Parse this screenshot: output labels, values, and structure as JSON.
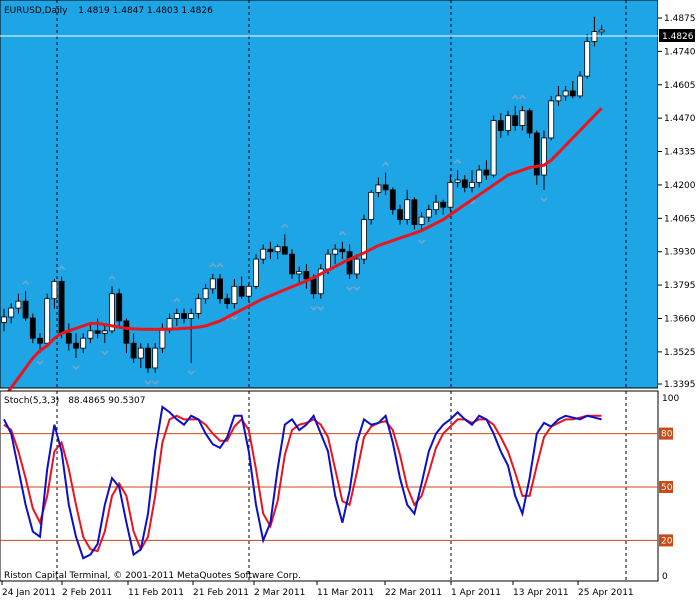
{
  "main_header": {
    "symbol": "EURUSD,Daily",
    "ohlc": "1.4819 1.4847 1.4803 1.4826"
  },
  "current_price_label": "1.4826",
  "stoch_header": {
    "name": "Stoch(5,3,3)",
    "values": "88.4865 90.5307"
  },
  "copyright": "Riston Capital Terminal, © 2001-2011 MetaQuotes Software Corp.",
  "colors": {
    "main_bg": "#1ea5e6",
    "stoch_bg": "#ffffff",
    "bull_candle": "#ffffff",
    "bear_candle": "#000000",
    "moving_average": "#e8141e",
    "stoch_main": "#0b10c8",
    "stoch_signal": "#e8141e",
    "stoch_levels": "#c84a14",
    "fractal_arrow": "#7ba6c8"
  },
  "chart_data": [
    {
      "type": "candlestick",
      "name": "EURUSD,Daily",
      "y_ticks": [
        "1.4875",
        "1.4740",
        "1.4605",
        "1.4470",
        "1.4335",
        "1.4200",
        "1.4065",
        "1.3930",
        "1.3795",
        "1.3660",
        "1.3525",
        "1.3395"
      ],
      "ylim": [
        1.3395,
        1.4875
      ],
      "x_ticks": [
        "24 Jan 2011",
        "2 Feb 2011",
        "11 Feb 2011",
        "21 Feb 2011",
        "2 Mar 2011",
        "11 Mar 2011",
        "22 Mar 2011",
        "1 Apr 2011",
        "13 Apr 2011",
        "25 Apr 2011"
      ],
      "candles": [
        [
          1.3644,
          1.37,
          1.3608,
          1.3666
        ],
        [
          1.3666,
          1.3722,
          1.364,
          1.3702
        ],
        [
          1.3702,
          1.376,
          1.368,
          1.373
        ],
        [
          1.373,
          1.377,
          1.365,
          1.3662
        ],
        [
          1.3662,
          1.368,
          1.356,
          1.358
        ],
        [
          1.358,
          1.36,
          1.352,
          1.356
        ],
        [
          1.356,
          1.376,
          1.356,
          1.374
        ],
        [
          1.374,
          1.382,
          1.37,
          1.381
        ],
        [
          1.381,
          1.383,
          1.358,
          1.36
        ],
        [
          1.36,
          1.364,
          1.353,
          1.356
        ],
        [
          1.356,
          1.36,
          1.35,
          1.354
        ],
        [
          1.354,
          1.36,
          1.352,
          1.358
        ],
        [
          1.358,
          1.364,
          1.356,
          1.361
        ],
        [
          1.361,
          1.366,
          1.358,
          1.36
        ],
        [
          1.36,
          1.364,
          1.356,
          1.361
        ],
        [
          1.361,
          1.379,
          1.36,
          1.376
        ],
        [
          1.376,
          1.378,
          1.362,
          1.365
        ],
        [
          1.365,
          1.366,
          1.352,
          1.356
        ],
        [
          1.356,
          1.36,
          1.348,
          1.35
        ],
        [
          1.35,
          1.356,
          1.346,
          1.354
        ],
        [
          1.354,
          1.356,
          1.344,
          1.346
        ],
        [
          1.346,
          1.356,
          1.344,
          1.354
        ],
        [
          1.354,
          1.364,
          1.352,
          1.362
        ],
        [
          1.362,
          1.368,
          1.36,
          1.366
        ],
        [
          1.366,
          1.37,
          1.363,
          1.368
        ],
        [
          1.368,
          1.37,
          1.364,
          1.366
        ],
        [
          1.366,
          1.37,
          1.348,
          1.368
        ],
        [
          1.368,
          1.376,
          1.366,
          1.374
        ],
        [
          1.374,
          1.38,
          1.372,
          1.378
        ],
        [
          1.378,
          1.384,
          1.376,
          1.382
        ],
        [
          1.382,
          1.384,
          1.372,
          1.374
        ],
        [
          1.374,
          1.376,
          1.37,
          1.372
        ],
        [
          1.372,
          1.382,
          1.37,
          1.379
        ],
        [
          1.379,
          1.383,
          1.374,
          1.375
        ],
        [
          1.375,
          1.38,
          1.373,
          1.379
        ],
        [
          1.379,
          1.392,
          1.378,
          1.39
        ],
        [
          1.39,
          1.396,
          1.388,
          1.394
        ],
        [
          1.394,
          1.397,
          1.39,
          1.393
        ],
        [
          1.393,
          1.396,
          1.39,
          1.395
        ],
        [
          1.395,
          1.4,
          1.392,
          1.392
        ],
        [
          1.392,
          1.394,
          1.382,
          1.384
        ],
        [
          1.384,
          1.387,
          1.38,
          1.385
        ],
        [
          1.385,
          1.388,
          1.378,
          1.382
        ],
        [
          1.382,
          1.384,
          1.374,
          1.376
        ],
        [
          1.376,
          1.388,
          1.374,
          1.386
        ],
        [
          1.386,
          1.394,
          1.384,
          1.392
        ],
        [
          1.392,
          1.396,
          1.388,
          1.394
        ],
        [
          1.394,
          1.397,
          1.39,
          1.393
        ],
        [
          1.393,
          1.396,
          1.382,
          1.384
        ],
        [
          1.384,
          1.392,
          1.382,
          1.39
        ],
        [
          1.39,
          1.408,
          1.388,
          1.406
        ],
        [
          1.406,
          1.418,
          1.404,
          1.417
        ],
        [
          1.417,
          1.423,
          1.415,
          1.42
        ],
        [
          1.42,
          1.425,
          1.416,
          1.418
        ],
        [
          1.418,
          1.419,
          1.408,
          1.41
        ],
        [
          1.41,
          1.412,
          1.404,
          1.406
        ],
        [
          1.406,
          1.418,
          1.404,
          1.414
        ],
        [
          1.414,
          1.415,
          1.402,
          1.404
        ],
        [
          1.404,
          1.409,
          1.401,
          1.407
        ],
        [
          1.407,
          1.412,
          1.405,
          1.41
        ],
        [
          1.41,
          1.416,
          1.408,
          1.413
        ],
        [
          1.413,
          1.414,
          1.408,
          1.411
        ],
        [
          1.411,
          1.424,
          1.409,
          1.421
        ],
        [
          1.421,
          1.426,
          1.419,
          1.422
        ],
        [
          1.422,
          1.424,
          1.417,
          1.419
        ],
        [
          1.419,
          1.426,
          1.417,
          1.421
        ],
        [
          1.421,
          1.428,
          1.419,
          1.426
        ],
        [
          1.426,
          1.43,
          1.422,
          1.424
        ],
        [
          1.424,
          1.448,
          1.423,
          1.446
        ],
        [
          1.446,
          1.449,
          1.439,
          1.442
        ],
        [
          1.442,
          1.45,
          1.44,
          1.448
        ],
        [
          1.448,
          1.452,
          1.442,
          1.444
        ],
        [
          1.444,
          1.452,
          1.442,
          1.45
        ],
        [
          1.45,
          1.451,
          1.439,
          1.441
        ],
        [
          1.441,
          1.442,
          1.42,
          1.424
        ],
        [
          1.424,
          1.442,
          1.418,
          1.439
        ],
        [
          1.439,
          1.456,
          1.438,
          1.454
        ],
        [
          1.454,
          1.46,
          1.452,
          1.456
        ],
        [
          1.456,
          1.46,
          1.454,
          1.458
        ],
        [
          1.458,
          1.462,
          1.455,
          1.456
        ],
        [
          1.456,
          1.466,
          1.455,
          1.464
        ],
        [
          1.464,
          1.481,
          1.463,
          1.478
        ],
        [
          1.478,
          1.488,
          1.476,
          1.482
        ],
        [
          1.4819,
          1.4847,
          1.4803,
          1.4826
        ]
      ],
      "moving_average": [
        1.334,
        1.338,
        1.342,
        1.346,
        1.35,
        1.353,
        1.355,
        1.358,
        1.36,
        1.361,
        1.362,
        1.363,
        1.364,
        1.364,
        1.3635,
        1.363,
        1.3625,
        1.362,
        1.3618,
        1.3617,
        1.3616,
        1.3616,
        1.3616,
        1.3617,
        1.3618,
        1.362,
        1.3622,
        1.3625,
        1.363,
        1.364,
        1.365,
        1.3665,
        1.368,
        1.3695,
        1.371,
        1.3725,
        1.374,
        1.3752,
        1.3764,
        1.3776,
        1.3788,
        1.38,
        1.3812,
        1.3825,
        1.384,
        1.3855,
        1.387,
        1.3885,
        1.39,
        1.3912,
        1.3925,
        1.394,
        1.3955,
        1.3965,
        1.3975,
        1.3985,
        1.3995,
        1.4005,
        1.4015,
        1.403,
        1.4045,
        1.406,
        1.408,
        1.41,
        1.412,
        1.414,
        1.416,
        1.418,
        1.42,
        1.422,
        1.424,
        1.425,
        1.426,
        1.427,
        1.4275,
        1.428,
        1.43,
        1.433,
        1.436,
        1.439,
        1.442,
        1.445,
        1.448,
        1.451
      ]
    },
    {
      "type": "line",
      "name": "Stoch(5,3,3)",
      "ylim": [
        0,
        100
      ],
      "y_ticks": [
        "100",
        "80",
        "50",
        "20",
        "0"
      ],
      "levels": [
        80,
        50,
        20
      ],
      "series": [
        {
          "name": "main",
          "values": [
            88,
            80,
            60,
            40,
            25,
            22,
            60,
            85,
            70,
            40,
            22,
            10,
            12,
            18,
            40,
            55,
            50,
            30,
            12,
            15,
            35,
            70,
            95,
            92,
            88,
            85,
            90,
            88,
            80,
            74,
            72,
            78,
            90,
            90,
            70,
            40,
            20,
            30,
            60,
            85,
            88,
            82,
            85,
            90,
            80,
            70,
            45,
            30,
            48,
            75,
            88,
            85,
            86,
            90,
            75,
            55,
            40,
            35,
            52,
            70,
            80,
            85,
            88,
            92,
            88,
            85,
            90,
            88,
            80,
            70,
            62,
            45,
            35,
            55,
            80,
            86,
            84,
            88,
            90,
            89,
            88,
            90,
            89,
            88
          ]
        },
        {
          "name": "signal",
          "values": [
            85,
            82,
            70,
            55,
            38,
            30,
            45,
            70,
            75,
            60,
            40,
            22,
            15,
            14,
            25,
            45,
            52,
            45,
            25,
            15,
            22,
            45,
            75,
            88,
            90,
            88,
            88,
            88,
            85,
            80,
            76,
            76,
            84,
            88,
            82,
            60,
            35,
            28,
            42,
            68,
            82,
            85,
            86,
            88,
            85,
            78,
            60,
            42,
            40,
            58,
            78,
            84,
            86,
            87,
            82,
            68,
            50,
            40,
            45,
            58,
            72,
            80,
            84,
            88,
            88,
            86,
            88,
            88,
            85,
            78,
            70,
            58,
            45,
            45,
            62,
            78,
            84,
            86,
            88,
            88,
            89,
            90,
            90,
            90
          ]
        }
      ]
    }
  ]
}
